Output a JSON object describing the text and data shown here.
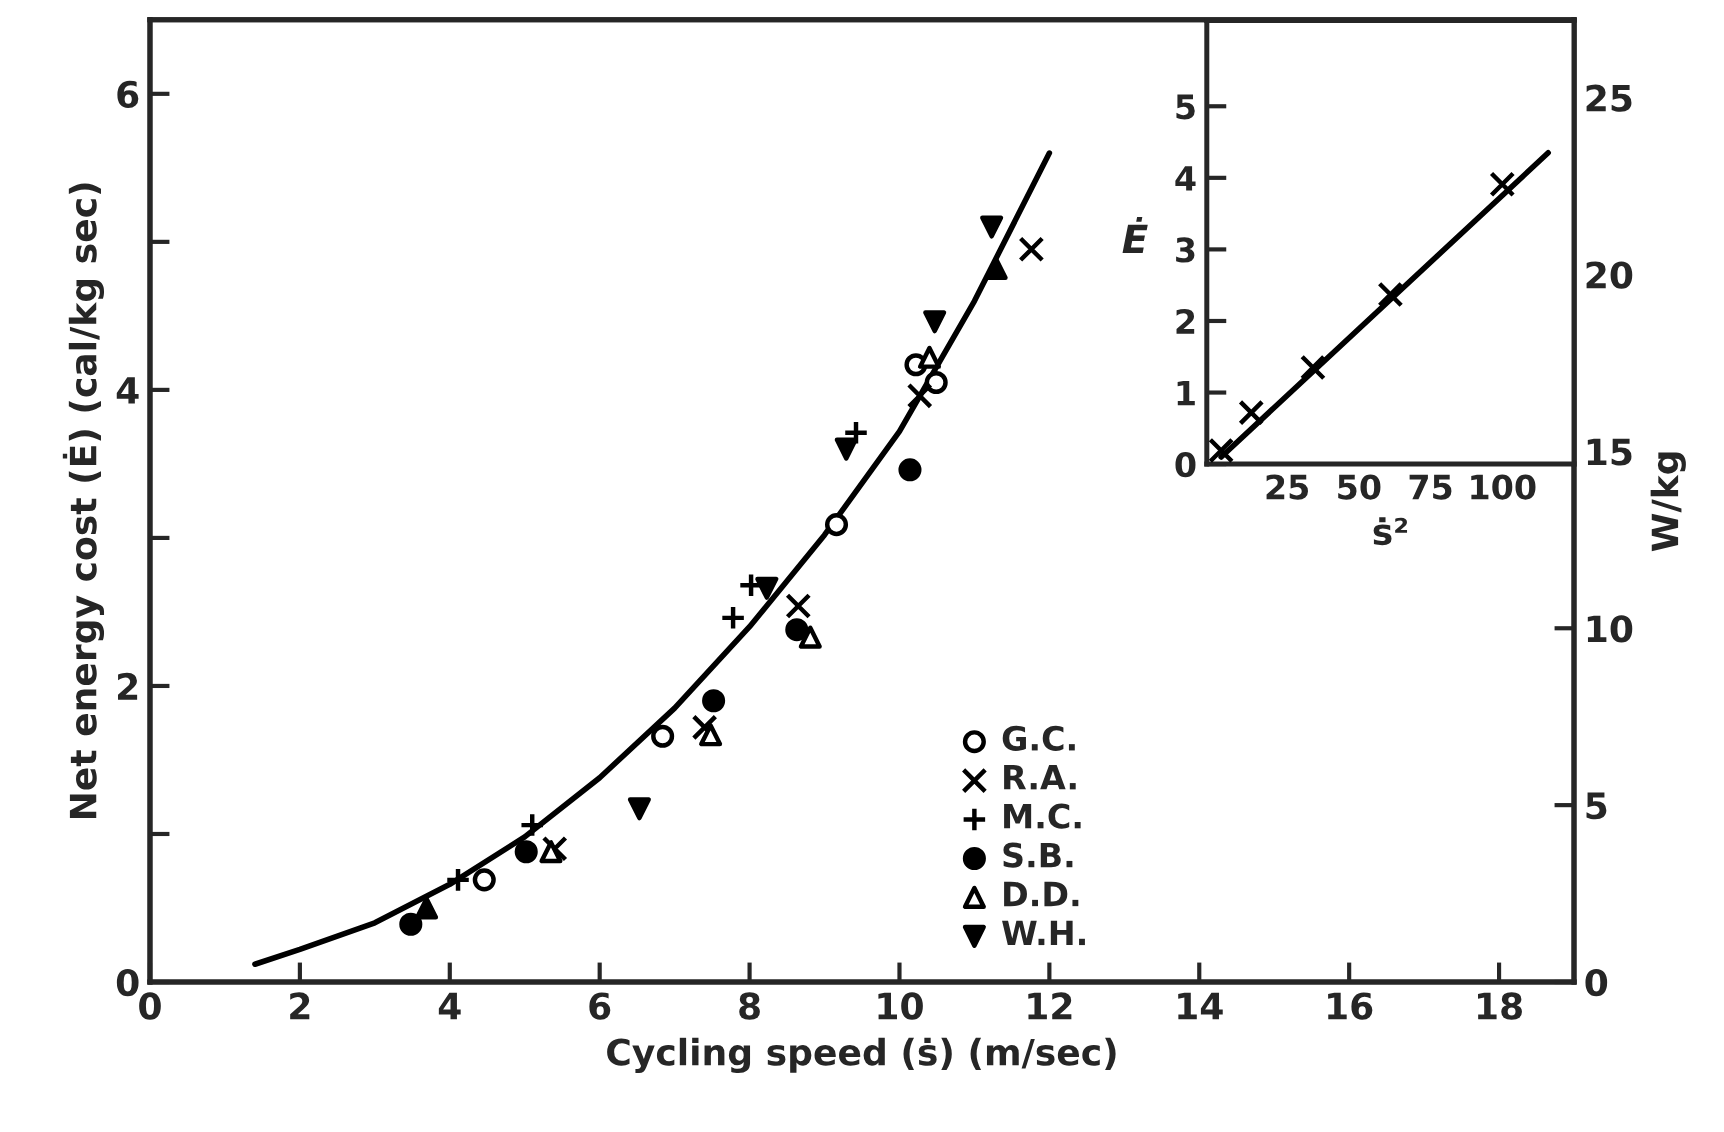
{
  "chart_data": [
    {
      "type": "scatter",
      "xlabel": "Cycling speed (ṡ) (m/sec)",
      "ylabel": "Net energy cost (Ė) (cal/kg sec)",
      "y2label": "W/kg",
      "xlim": [
        0,
        19
      ],
      "xticks": [
        0,
        2,
        4,
        6,
        8,
        10,
        12,
        14,
        16,
        18
      ],
      "ylim": [
        0,
        6.5
      ],
      "yticks": [
        0,
        {
          "value": 1,
          "label": null
        },
        2,
        {
          "value": 3,
          "label": null
        },
        4,
        {
          "value": 5,
          "label": null
        },
        6
      ],
      "y2lim": [
        0,
        27.2
      ],
      "y2ticks": [
        0,
        5,
        10,
        15,
        20,
        25
      ],
      "grid": false,
      "legend": "lower right",
      "series": [
        {
          "name": "G.C.",
          "marker": "circle",
          "color": "#ffffff",
          "x": [
            4.46,
            6.84,
            9.16,
            10.22,
            10.49
          ],
          "values": [
            0.69,
            1.66,
            3.09,
            4.17,
            4.05
          ]
        },
        {
          "name": "R.A.",
          "marker": "x",
          "color": "#000000",
          "x": [
            5.4,
            7.4,
            8.65,
            10.27,
            11.76
          ],
          "values": [
            0.9,
            1.72,
            2.54,
            3.96,
            4.95
          ]
        },
        {
          "name": "M.C.",
          "marker": "plus",
          "color": "#000000",
          "x": [
            4.11,
            5.1,
            7.78,
            8.02,
            9.42
          ],
          "values": [
            0.69,
            1.06,
            2.46,
            2.68,
            3.71
          ]
        },
        {
          "name": "S.B.",
          "marker": "circle",
          "color": "#000000",
          "x": [
            3.48,
            5.02,
            7.52,
            8.63,
            10.14
          ],
          "values": [
            0.39,
            0.88,
            1.9,
            2.38,
            3.46
          ]
        },
        {
          "name": "D.D.",
          "marker": "triangle",
          "color": "#ffffff",
          "x": [
            5.35,
            7.48,
            8.81,
            10.4
          ],
          "values": [
            0.88,
            1.67,
            2.33,
            4.22
          ]
        },
        {
          "name": "W.H.",
          "marker": "triangle_down",
          "color": "#000000",
          "x": [
            6.53,
            8.23,
            9.29,
            10.47,
            11.23
          ],
          "values": [
            1.17,
            2.66,
            3.6,
            4.46,
            5.1
          ]
        },
        {
          "marker": "triangle",
          "color": "#000000",
          "x": [
            3.69,
            11.29
          ],
          "values": [
            0.5,
            4.82
          ]
        },
        {
          "type": "line",
          "marker": "none",
          "color": "#000000",
          "x": [
            1.4,
            2,
            3,
            4,
            5,
            6,
            7,
            8,
            9,
            10,
            11,
            12
          ],
          "values": [
            0.12,
            0.22,
            0.4,
            0.66,
            0.98,
            1.38,
            1.85,
            2.4,
            3.02,
            3.72,
            4.6,
            5.6
          ]
        }
      ]
    },
    {
      "type": "scatter",
      "xlabel": "ṡ²",
      "ylabel": "Ė",
      "xlim": [
        -3,
        125
      ],
      "xticks": [
        25,
        50,
        75,
        100
      ],
      "ylim": [
        0,
        6.2
      ],
      "yticks": [
        0,
        1,
        2,
        3,
        4,
        5
      ],
      "grid": false,
      "series": [
        {
          "type": "line",
          "marker": "none",
          "color": "#000000",
          "x": [
            2,
            116
          ],
          "values": [
            0.1,
            4.35
          ]
        },
        {
          "marker": "x",
          "color": "#000000",
          "x": [
            2,
            12.5,
            34,
            61,
            100
          ],
          "values": [
            0.19,
            0.72,
            1.35,
            2.37,
            3.91
          ]
        }
      ]
    }
  ]
}
